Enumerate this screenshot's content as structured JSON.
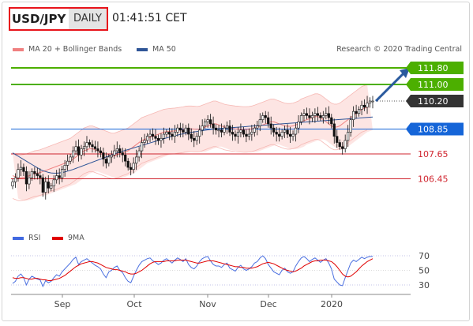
{
  "header": {
    "symbol": "USD/JPY",
    "period": "DAILY",
    "time": "01:41:51 CET"
  },
  "legend": {
    "ma20_bb": "MA 20 + Bollinger Bands",
    "ma50": "MA 50",
    "credit": "Research © 2020 Trading Central",
    "ma20_color": "#f08080",
    "ma50_color": "#2f5597"
  },
  "rsi_legend": {
    "rsi": "RSI",
    "ma9": "9MA",
    "rsi_color": "#4169e1",
    "ma9_color": "#e00000"
  },
  "chart_data": [
    {
      "type": "candlestick",
      "title": "USD/JPY",
      "y_range": [
        105.3,
        112.3
      ],
      "x_labels": [
        "Sep",
        "Oct",
        "Nov",
        "Dec",
        "2020"
      ],
      "levels": [
        {
          "value": 111.8,
          "label": "111.80",
          "kind": "resistance",
          "color": "#4caf00"
        },
        {
          "value": 111.0,
          "label": "111.00",
          "kind": "resistance",
          "color": "#4caf00"
        },
        {
          "value": 110.2,
          "label": "110.20",
          "kind": "last",
          "color": "#333333"
        },
        {
          "value": 108.85,
          "label": "108.85",
          "kind": "pivot",
          "color": "#1565d8"
        },
        {
          "value": 107.65,
          "label": "107.65",
          "kind": "support",
          "color": "#d0252f"
        },
        {
          "value": 106.45,
          "label": "106.45",
          "kind": "support",
          "color": "#d0252f"
        }
      ],
      "closes": [
        106.3,
        106.5,
        106.9,
        107.0,
        106.8,
        106.2,
        106.5,
        106.8,
        106.7,
        106.6,
        106.5,
        105.8,
        106.3,
        106.0,
        106.1,
        106.4,
        106.6,
        106.5,
        106.9,
        107.1,
        107.3,
        107.5,
        107.8,
        108.0,
        107.6,
        107.9,
        108.0,
        108.2,
        108.1,
        108.0,
        107.9,
        107.8,
        107.7,
        107.4,
        107.2,
        107.5,
        107.6,
        107.8,
        107.9,
        107.7,
        107.6,
        107.3,
        107.0,
        106.9,
        107.2,
        107.5,
        107.8,
        108.2,
        108.3,
        108.5,
        108.6,
        108.5,
        108.4,
        108.3,
        108.4,
        108.6,
        108.7,
        108.6,
        108.5,
        108.7,
        108.9,
        108.8,
        108.7,
        108.9,
        108.6,
        108.4,
        108.3,
        108.5,
        108.8,
        109.0,
        109.2,
        109.3,
        109.1,
        108.9,
        108.8,
        108.8,
        108.7,
        108.9,
        109.0,
        108.7,
        108.6,
        108.5,
        108.7,
        108.8,
        108.6,
        108.5,
        108.6,
        108.7,
        108.9,
        109.0,
        109.3,
        109.5,
        109.4,
        109.1,
        108.9,
        108.7,
        108.6,
        108.5,
        108.7,
        108.8,
        108.6,
        108.5,
        108.6,
        108.9,
        109.2,
        109.5,
        109.6,
        109.5,
        109.4,
        109.5,
        109.6,
        109.5,
        109.4,
        109.5,
        109.6,
        109.4,
        109.1,
        108.5,
        108.2,
        108.0,
        107.9,
        108.3,
        108.7,
        109.3,
        109.7,
        109.6,
        109.8,
        110.0,
        109.9,
        110.1,
        110.2,
        110.2
      ],
      "x_data_range": [
        0,
        146
      ],
      "ma20": [
        106.6,
        106.55,
        106.5,
        106.5,
        106.52,
        106.55,
        106.6,
        106.65,
        106.7,
        106.72,
        106.75,
        106.8,
        106.85,
        106.9,
        106.95,
        107.0,
        107.05,
        107.1,
        107.15,
        107.2,
        107.25,
        107.3,
        107.4,
        107.5,
        107.6,
        107.7,
        107.8,
        107.85,
        107.9,
        107.9,
        107.85,
        107.8,
        107.75,
        107.7,
        107.65,
        107.6,
        107.55,
        107.55,
        107.6,
        107.65,
        107.7,
        107.75,
        107.8,
        107.9,
        108.0,
        108.1,
        108.2,
        108.3,
        108.35,
        108.4,
        108.45,
        108.5,
        108.55,
        108.6,
        108.65,
        108.7,
        108.72,
        108.74,
        108.75,
        108.76,
        108.78,
        108.8,
        108.82,
        108.85,
        108.86,
        108.86,
        108.85,
        108.84,
        108.85,
        108.9,
        108.95,
        109.0,
        109.05,
        109.1,
        109.1,
        109.05,
        109.0,
        108.95,
        108.92,
        108.9,
        108.88,
        108.86,
        108.85,
        108.84,
        108.83,
        108.83,
        108.84,
        108.86,
        108.9,
        108.95,
        109.0,
        109.05,
        109.1,
        109.15,
        109.2,
        109.2,
        109.15,
        109.1,
        109.05,
        109.0,
        108.98,
        108.98,
        109.0,
        109.05,
        109.1,
        109.2,
        109.25,
        109.3,
        109.35,
        109.4,
        109.45,
        109.45,
        109.4,
        109.3,
        109.2,
        109.1,
        109.0,
        108.95,
        108.95,
        109.0,
        109.1,
        109.2,
        109.3,
        109.4,
        109.5,
        109.6,
        109.7,
        109.8,
        109.85,
        109.9
      ],
      "ma50": [
        107.7,
        107.62,
        107.54,
        107.46,
        107.38,
        107.3,
        107.22,
        107.14,
        107.06,
        106.98,
        106.9,
        106.84,
        106.8,
        106.76,
        106.73,
        106.72,
        106.72,
        106.73,
        106.75,
        106.78,
        106.82,
        106.86,
        106.9,
        106.95,
        107.0,
        107.05,
        107.1,
        107.15,
        107.2,
        107.25,
        107.3,
        107.35,
        107.4,
        107.45,
        107.5,
        107.55,
        107.6,
        107.65,
        107.7,
        107.74,
        107.78,
        107.82,
        107.86,
        107.9,
        107.94,
        107.98,
        108.02,
        108.06,
        108.1,
        108.14,
        108.18,
        108.22,
        108.26,
        108.3,
        108.34,
        108.38,
        108.42,
        108.46,
        108.5,
        108.53,
        108.56,
        108.59,
        108.62,
        108.65,
        108.67,
        108.69,
        108.71,
        108.73,
        108.75,
        108.77,
        108.79,
        108.81,
        108.83,
        108.85,
        108.86,
        108.87,
        108.88,
        108.89,
        108.9,
        108.91,
        108.92,
        108.93,
        108.94,
        108.95,
        108.96,
        108.97,
        108.98,
        108.99,
        109.0,
        109.01,
        109.02,
        109.03,
        109.04,
        109.05,
        109.06,
        109.07,
        109.08,
        109.09,
        109.1,
        109.11,
        109.12,
        109.13,
        109.14,
        109.15,
        109.16,
        109.17,
        109.18,
        109.19,
        109.2,
        109.21,
        109.22,
        109.23,
        109.24,
        109.25,
        109.26,
        109.27,
        109.28,
        109.29,
        109.3,
        109.31,
        109.32,
        109.33,
        109.34,
        109.35,
        109.36,
        109.37,
        109.38,
        109.39,
        109.4,
        109.41,
        109.42,
        109.43
      ],
      "bb_width": 1.1
    },
    {
      "type": "line",
      "title": "RSI",
      "y_ticks": [
        70,
        50,
        30
      ],
      "y_range": [
        20,
        75
      ],
      "series": [
        {
          "name": "RSI",
          "values": [
            32,
            35,
            42,
            45,
            40,
            30,
            38,
            42,
            40,
            38,
            37,
            28,
            36,
            33,
            35,
            40,
            44,
            42,
            48,
            52,
            56,
            60,
            65,
            68,
            58,
            62,
            64,
            66,
            63,
            60,
            57,
            55,
            52,
            45,
            40,
            48,
            50,
            54,
            56,
            50,
            47,
            40,
            35,
            33,
            42,
            50,
            57,
            62,
            64,
            66,
            67,
            63,
            61,
            58,
            60,
            64,
            66,
            63,
            60,
            64,
            67,
            65,
            62,
            66,
            58,
            54,
            52,
            56,
            62,
            66,
            68,
            69,
            63,
            58,
            56,
            56,
            54,
            58,
            60,
            53,
            51,
            49,
            54,
            57,
            52,
            50,
            52,
            55,
            60,
            62,
            67,
            70,
            66,
            58,
            53,
            48,
            46,
            44,
            50,
            53,
            48,
            46,
            48,
            56,
            62,
            67,
            69,
            66,
            62,
            65,
            67,
            64,
            61,
            64,
            66,
            60,
            52,
            38,
            34,
            30,
            29,
            40,
            50,
            60,
            64,
            62,
            65,
            68,
            66,
            68,
            69,
            69
          ]
        },
        {
          "name": "9MA",
          "values": [
            40,
            39,
            39,
            40,
            40,
            39,
            38,
            38,
            39,
            39,
            38,
            37,
            37,
            36,
            36,
            37,
            38,
            39,
            41,
            43,
            46,
            49,
            52,
            55,
            57,
            59,
            60,
            61,
            62,
            62,
            61,
            60,
            58,
            56,
            54,
            53,
            52,
            51,
            51,
            50,
            49,
            48,
            46,
            45,
            45,
            46,
            48,
            50,
            53,
            56,
            59,
            61,
            62,
            62,
            62,
            62,
            63,
            63,
            63,
            63,
            64,
            64,
            64,
            64,
            63,
            62,
            61,
            60,
            60,
            61,
            62,
            63,
            63,
            63,
            62,
            61,
            60,
            59,
            58,
            57,
            56,
            55,
            55,
            54,
            54,
            53,
            53,
            53,
            54,
            55,
            57,
            59,
            60,
            61,
            60,
            59,
            57,
            55,
            53,
            51,
            50,
            49,
            48,
            49,
            51,
            53,
            56,
            58,
            60,
            62,
            63,
            63,
            64,
            64,
            64,
            63,
            62,
            59,
            55,
            50,
            45,
            42,
            41,
            42,
            45,
            48,
            52,
            56,
            59,
            62,
            64,
            66
          ]
        }
      ]
    }
  ]
}
